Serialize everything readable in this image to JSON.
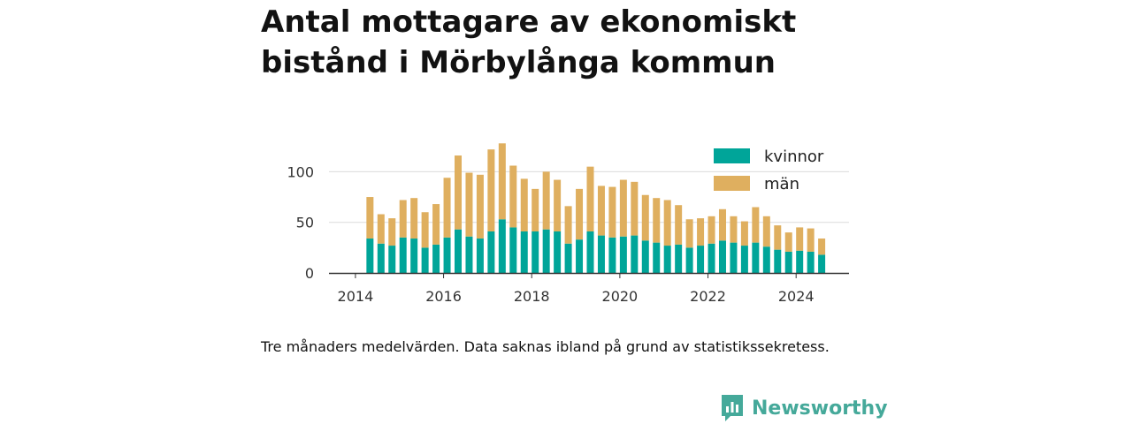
{
  "title": "Antal mottagare av ekonomiskt bistånd i Mörbylånga kommun",
  "caption": "Tre månaders medelvärden. Data saknas ibland på grund av statistikssekretess.",
  "brand": {
    "name": "Newsworthy",
    "icon": "newsworthy-logo-icon",
    "color": "#45a99a"
  },
  "chart_data": {
    "type": "bar",
    "stacked": true,
    "ylim": [
      0,
      130
    ],
    "xlim": [
      2013.4,
      2025.2
    ],
    "yticks": [
      {
        "value": 0,
        "label": "0"
      },
      {
        "value": 50,
        "label": "50"
      },
      {
        "value": 100,
        "label": "100"
      }
    ],
    "xticks": [
      {
        "value": 2014,
        "label": "2014"
      },
      {
        "value": 2016,
        "label": "2016"
      },
      {
        "value": 2018,
        "label": "2018"
      },
      {
        "value": 2020,
        "label": "2020"
      },
      {
        "value": 2022,
        "label": "2022"
      },
      {
        "value": 2024,
        "label": "2024"
      }
    ],
    "grid": true,
    "legend_position": "top-right",
    "x": [
      2014.33,
      2014.58,
      2014.83,
      2015.08,
      2015.33,
      2015.58,
      2015.83,
      2016.08,
      2016.33,
      2016.58,
      2016.83,
      2017.08,
      2017.33,
      2017.58,
      2017.83,
      2018.08,
      2018.33,
      2018.58,
      2018.83,
      2019.08,
      2019.33,
      2019.58,
      2019.83,
      2020.08,
      2020.33,
      2020.58,
      2020.83,
      2021.08,
      2021.33,
      2021.58,
      2021.83,
      2022.08,
      2022.33,
      2022.58,
      2022.83,
      2023.08,
      2023.33,
      2023.58,
      2023.83,
      2024.08,
      2024.33,
      2024.58
    ],
    "series": [
      {
        "name": "kvinnor",
        "color": "#00a599",
        "values": [
          34,
          29,
          27,
          35,
          34,
          25,
          28,
          35,
          43,
          36,
          34,
          41,
          53,
          45,
          41,
          41,
          43,
          41,
          29,
          33,
          41,
          37,
          35,
          36,
          37,
          32,
          30,
          27,
          28,
          25,
          27,
          29,
          32,
          30,
          27,
          30,
          26,
          23,
          21,
          22,
          21,
          18
        ]
      },
      {
        "name": "män",
        "color": "#dfaf5f",
        "values": [
          41,
          29,
          27,
          37,
          40,
          35,
          40,
          59,
          73,
          63,
          63,
          81,
          75,
          61,
          52,
          42,
          57,
          51,
          37,
          50,
          64,
          49,
          50,
          56,
          53,
          45,
          44,
          45,
          39,
          28,
          27,
          27,
          31,
          26,
          24,
          35,
          30,
          24,
          19,
          23,
          23,
          16
        ]
      }
    ]
  }
}
